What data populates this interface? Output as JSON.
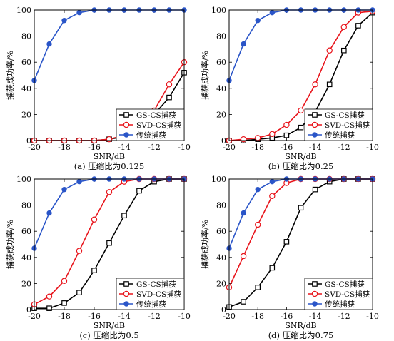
{
  "figure": {
    "x_label": "SNR/dB",
    "y_label": "捕获成功率/%",
    "legend": [
      "GS-CS捕获",
      "SVD-CS捕获",
      "传统捕获"
    ]
  },
  "colors": {
    "gs": "#000000",
    "svd": "#e8141b",
    "trad": "#2a55c8"
  },
  "chart_data": [
    {
      "type": "line",
      "caption": "(a) 压缩比为0.125",
      "x": [
        -20,
        -19,
        -18,
        -17,
        -16,
        -15,
        -14,
        -13,
        -12,
        -11,
        -10
      ],
      "xlim": [
        -20,
        -10
      ],
      "ylim": [
        0,
        100
      ],
      "xticks": [
        -20,
        -18,
        -16,
        -14,
        -12,
        -10
      ],
      "yticks": [
        0,
        20,
        40,
        60,
        80,
        100
      ],
      "xlabel": "SNR/dB",
      "ylabel": "捕获成功率/%",
      "legend_position": "bottom-right",
      "series": [
        {
          "name": "GS-CS捕获",
          "values": [
            0,
            0,
            0,
            0,
            0,
            1,
            3,
            12,
            20,
            33,
            52
          ]
        },
        {
          "name": "SVD-CS捕获",
          "values": [
            0,
            0,
            0,
            0,
            0,
            1,
            4,
            13,
            23,
            43,
            60
          ]
        },
        {
          "name": "传统捕获",
          "values": [
            46,
            74,
            92,
            98,
            100,
            100,
            100,
            100,
            100,
            100,
            100
          ]
        }
      ]
    },
    {
      "type": "line",
      "caption": "(b) 压缩比为0.25",
      "x": [
        -20,
        -19,
        -18,
        -17,
        -16,
        -15,
        -14,
        -13,
        -12,
        -11,
        -10
      ],
      "xlim": [
        -20,
        -10
      ],
      "ylim": [
        0,
        100
      ],
      "xticks": [
        -20,
        -18,
        -16,
        -14,
        -12,
        -10
      ],
      "yticks": [
        0,
        20,
        40,
        60,
        80,
        100
      ],
      "xlabel": "SNR/dB",
      "ylabel": "捕获成功率/%",
      "legend_position": "bottom-right",
      "series": [
        {
          "name": "GS-CS捕获",
          "values": [
            0,
            0,
            1,
            2,
            4,
            10,
            22,
            43,
            69,
            88,
            98
          ]
        },
        {
          "name": "SVD-CS捕获",
          "values": [
            0,
            1,
            2,
            5,
            12,
            23,
            43,
            69,
            87,
            98,
            99
          ]
        },
        {
          "name": "传统捕获",
          "values": [
            46,
            74,
            92,
            98,
            100,
            100,
            100,
            100,
            100,
            100,
            100
          ]
        }
      ]
    },
    {
      "type": "line",
      "caption": "(c) 压缩比为0.5",
      "x": [
        -20,
        -19,
        -18,
        -17,
        -16,
        -15,
        -14,
        -13,
        -12,
        -11,
        -10
      ],
      "xlim": [
        -20,
        -10
      ],
      "ylim": [
        0,
        100
      ],
      "xticks": [
        -20,
        -18,
        -16,
        -14,
        -12,
        -10
      ],
      "yticks": [
        0,
        20,
        40,
        60,
        80,
        100
      ],
      "xlabel": "SNR/dB",
      "ylabel": "捕获成功率/%",
      "legend_position": "bottom-right",
      "series": [
        {
          "name": "GS-CS捕获",
          "values": [
            1,
            1,
            5,
            13,
            30,
            51,
            72,
            91,
            98,
            100,
            100
          ]
        },
        {
          "name": "SVD-CS捕获",
          "values": [
            4,
            10,
            22,
            45,
            69,
            90,
            98,
            100,
            100,
            100,
            100
          ]
        },
        {
          "name": "传统捕获",
          "values": [
            47,
            74,
            92,
            98,
            100,
            100,
            100,
            100,
            100,
            100,
            100
          ]
        }
      ]
    },
    {
      "type": "line",
      "caption": "(d) 压缩比为0.75",
      "x": [
        -20,
        -19,
        -18,
        -17,
        -16,
        -15,
        -14,
        -13,
        -12,
        -11,
        -10
      ],
      "xlim": [
        -20,
        -10
      ],
      "ylim": [
        0,
        100
      ],
      "xticks": [
        -20,
        -18,
        -16,
        -14,
        -12,
        -10
      ],
      "yticks": [
        0,
        20,
        40,
        60,
        80,
        100
      ],
      "xlabel": "SNR/dB",
      "ylabel": "捕获成功率/%",
      "legend_position": "bottom-right",
      "series": [
        {
          "name": "GS-CS捕获",
          "values": [
            2,
            6,
            17,
            32,
            52,
            78,
            92,
            98,
            100,
            100,
            100
          ]
        },
        {
          "name": "SVD-CS捕获",
          "values": [
            17,
            41,
            65,
            87,
            97,
            100,
            100,
            100,
            100,
            100,
            100
          ]
        },
        {
          "name": "传统捕获",
          "values": [
            47,
            74,
            92,
            98,
            100,
            100,
            100,
            100,
            100,
            100,
            100
          ]
        }
      ]
    }
  ]
}
